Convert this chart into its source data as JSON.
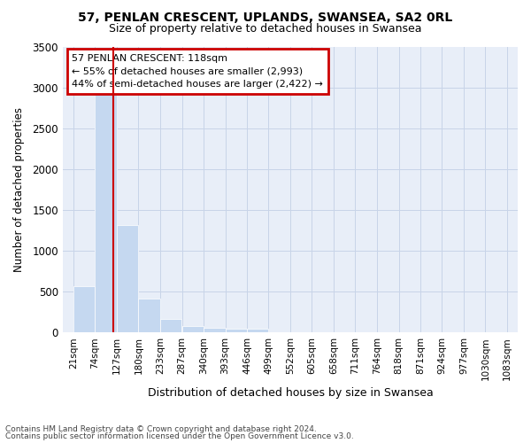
{
  "title1": "57, PENLAN CRESCENT, UPLANDS, SWANSEA, SA2 0RL",
  "title2": "Size of property relative to detached houses in Swansea",
  "xlabel": "Distribution of detached houses by size in Swansea",
  "ylabel": "Number of detached properties",
  "footnote1": "Contains HM Land Registry data © Crown copyright and database right 2024.",
  "footnote2": "Contains public sector information licensed under the Open Government Licence v3.0.",
  "property_label": "57 PENLAN CRESCENT: 118sqm",
  "annotation_line1": "← 55% of detached houses are smaller (2,993)",
  "annotation_line2": "44% of semi-detached houses are larger (2,422) →",
  "bar_color": "#c5d8f0",
  "bar_edge_color": "#c5d8f0",
  "vline_color": "#cc0000",
  "annotation_box_edgecolor": "#cc0000",
  "grid_color": "#c8d4e8",
  "bg_color": "#e8eef8",
  "categories": [
    "21sqm",
    "74sqm",
    "127sqm",
    "180sqm",
    "233sqm",
    "287sqm",
    "340sqm",
    "393sqm",
    "446sqm",
    "499sqm",
    "552sqm",
    "605sqm",
    "658sqm",
    "711sqm",
    "764sqm",
    "818sqm",
    "871sqm",
    "924sqm",
    "977sqm",
    "1030sqm",
    "1083sqm"
  ],
  "values": [
    570,
    2920,
    1310,
    410,
    170,
    80,
    55,
    50,
    40,
    0,
    0,
    0,
    0,
    0,
    0,
    0,
    0,
    0,
    0,
    0,
    0
  ],
  "bin_edges": [
    21,
    74,
    127,
    180,
    233,
    287,
    340,
    393,
    446,
    499,
    552,
    605,
    658,
    711,
    764,
    818,
    871,
    924,
    977,
    1030,
    1083
  ],
  "vline_x": 118,
  "ylim": [
    0,
    3500
  ],
  "yticks": [
    0,
    500,
    1000,
    1500,
    2000,
    2500,
    3000,
    3500
  ]
}
